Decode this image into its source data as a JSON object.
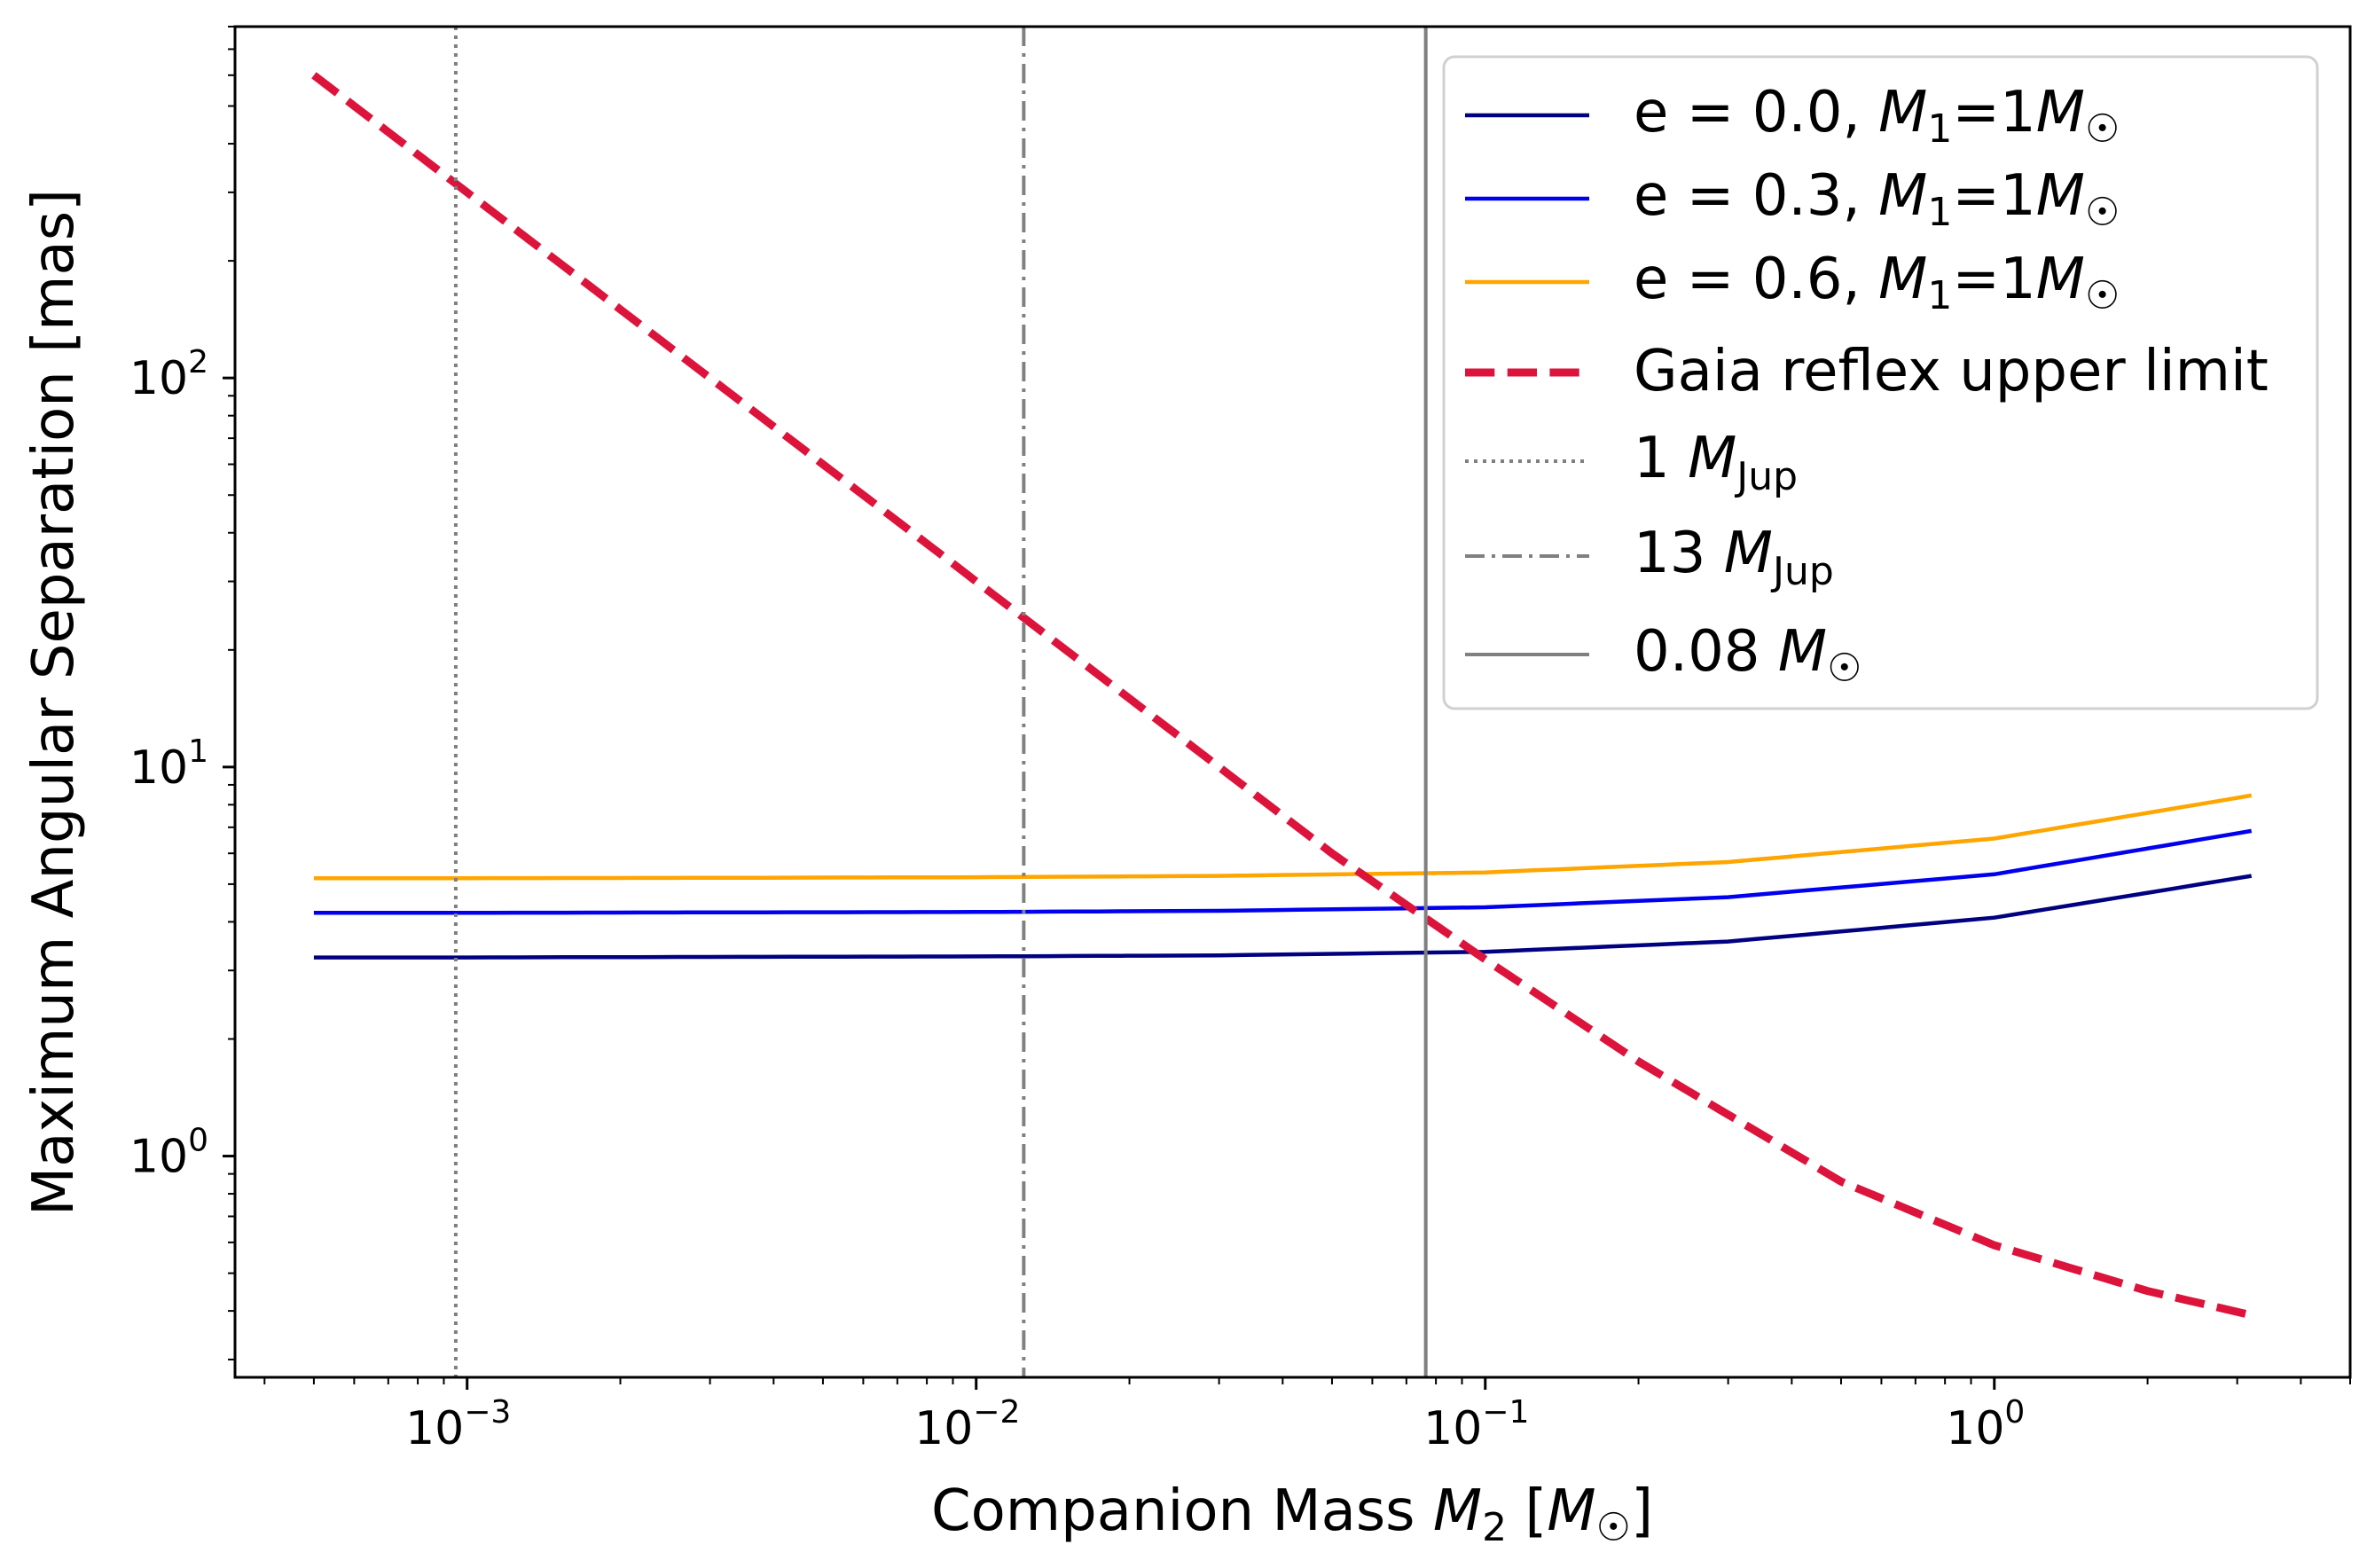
{
  "chart_data": {
    "type": "line",
    "xlabel": "Companion Mass M₂ [M☉]",
    "ylabel": "Maximum Angular Separation [mas]",
    "xscale": "log",
    "yscale": "log",
    "xlim": [
      0.00035,
      5.0
    ],
    "ylim": [
      0.27,
      800
    ],
    "x_ticks": [
      {
        "value": 0.001,
        "base": "10",
        "exp": "−3"
      },
      {
        "value": 0.01,
        "base": "10",
        "exp": "−2"
      },
      {
        "value": 0.1,
        "base": "10",
        "exp": "−1"
      },
      {
        "value": 1.0,
        "base": "10",
        "exp": "0"
      }
    ],
    "y_ticks": [
      {
        "value": 1,
        "base": "10",
        "exp": "0"
      },
      {
        "value": 10,
        "base": "10",
        "exp": "1"
      },
      {
        "value": 100,
        "base": "10",
        "exp": "2"
      }
    ],
    "grid": false,
    "legend_position": "top-right",
    "series": [
      {
        "name": "e = 0.0, M₁=1M☉",
        "color": "#000080",
        "style": "solid",
        "x": [
          0.0005,
          0.001,
          0.003,
          0.01,
          0.03,
          0.1,
          0.3,
          1.0,
          3.2
        ],
        "y": [
          3.24,
          3.24,
          3.25,
          3.26,
          3.28,
          3.35,
          3.56,
          4.1,
          5.25
        ]
      },
      {
        "name": "e = 0.3, M₁=1M☉",
        "color": "#0000ee",
        "style": "solid",
        "x": [
          0.0005,
          0.001,
          0.003,
          0.01,
          0.03,
          0.1,
          0.3,
          1.0,
          3.2
        ],
        "y": [
          4.22,
          4.22,
          4.23,
          4.24,
          4.27,
          4.36,
          4.63,
          5.3,
          6.85
        ]
      },
      {
        "name": "e = 0.6, M₁=1M☉",
        "color": "#ffa500",
        "style": "solid",
        "x": [
          0.0005,
          0.001,
          0.003,
          0.01,
          0.03,
          0.1,
          0.3,
          1.0,
          3.2
        ],
        "y": [
          5.18,
          5.18,
          5.19,
          5.21,
          5.25,
          5.36,
          5.7,
          6.55,
          8.45
        ]
      },
      {
        "name": "Gaia reflex upper limit",
        "color": "#dc143c",
        "style": "dashed",
        "x": [
          0.0005,
          0.001,
          0.002,
          0.005,
          0.01,
          0.02,
          0.05,
          0.1,
          0.2,
          0.5,
          1.0,
          2.0,
          3.2
        ],
        "y": [
          600,
          300,
          150,
          60,
          30,
          15,
          6,
          3.2,
          1.75,
          0.86,
          0.59,
          0.45,
          0.39
        ]
      }
    ],
    "reference_lines": [
      {
        "name": "1 M_Jup",
        "label_main": "1 ",
        "label_sym": "M",
        "label_sub": "Jup",
        "x": 0.00095,
        "color": "#808080",
        "style": "dotted"
      },
      {
        "name": "13 M_Jup",
        "label_main": "13 ",
        "label_sym": "M",
        "label_sub": "Jup",
        "x": 0.0124,
        "color": "#808080",
        "style": "dashdot"
      },
      {
        "name": "0.08 M_sun",
        "label_main": "0.08 ",
        "label_sym": "M",
        "label_sub": "☉",
        "x": 0.0764,
        "color": "#808080",
        "style": "solid"
      }
    ],
    "legend_labels": {
      "s0_pre": "e = 0.0, ",
      "s1_pre": "e = 0.3, ",
      "s2_pre": "e = 0.6, ",
      "m1_mid": "=1",
      "gaia": "Gaia reflex upper limit"
    },
    "xlabel_parts": {
      "pre": "Companion Mass ",
      "sym": "M",
      "sub": "2",
      "post1": " [",
      "sym2": "M",
      "sub2": "☉",
      "post2": "]"
    }
  }
}
